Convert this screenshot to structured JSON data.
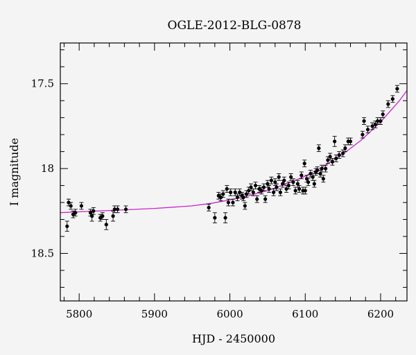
{
  "chart_data": {
    "type": "scatter",
    "title": "OGLE-2012-BLG-0878",
    "xlabel": "HJD - 2450000",
    "ylabel": "I magnitude",
    "xlim": [
      5775,
      6235
    ],
    "ylim": [
      18.78,
      17.26
    ],
    "y_inverted": true,
    "x_ticks": [
      5800,
      5900,
      6000,
      6100,
      6200
    ],
    "y_ticks": [
      17.5,
      18,
      18.5
    ],
    "y_tick_labels": [
      "17.5",
      "18",
      "18.5"
    ],
    "x_minor_step": 20,
    "y_minor_step": 0.1,
    "grid": false,
    "colors": {
      "points": "#000000",
      "fit": "#cc22cc",
      "background": "#f4f4f4"
    },
    "series": [
      {
        "kind": "observations",
        "points": [
          [
            5784,
            18.34,
            0.03
          ],
          [
            5786,
            18.2,
            0.02
          ],
          [
            5789,
            18.22,
            0.02
          ],
          [
            5792,
            18.27,
            0.02
          ],
          [
            5795,
            18.26,
            0.02
          ],
          [
            5803,
            18.22,
            0.02
          ],
          [
            5815,
            18.26,
            0.02
          ],
          [
            5817,
            18.28,
            0.03
          ],
          [
            5819,
            18.25,
            0.02
          ],
          [
            5828,
            18.29,
            0.02
          ],
          [
            5831,
            18.28,
            0.02
          ],
          [
            5836,
            18.33,
            0.03
          ],
          [
            5845,
            18.28,
            0.03
          ],
          [
            5847,
            18.24,
            0.02
          ],
          [
            5851,
            18.24,
            0.02
          ],
          [
            5862,
            18.24,
            0.02
          ],
          [
            5972,
            18.23,
            0.02
          ],
          [
            5980,
            18.29,
            0.03
          ],
          [
            5985,
            18.16,
            0.02
          ],
          [
            5988,
            18.17,
            0.02
          ],
          [
            5991,
            18.15,
            0.02
          ],
          [
            5994,
            18.29,
            0.03
          ],
          [
            5996,
            18.12,
            0.02
          ],
          [
            5998,
            18.2,
            0.02
          ],
          [
            6001,
            18.14,
            0.02
          ],
          [
            6004,
            18.2,
            0.02
          ],
          [
            6007,
            18.14,
            0.02
          ],
          [
            6010,
            18.17,
            0.02
          ],
          [
            6013,
            18.14,
            0.02
          ],
          [
            6016,
            18.16,
            0.02
          ],
          [
            6018,
            18.17,
            0.02
          ],
          [
            6020,
            18.22,
            0.02
          ],
          [
            6022,
            18.15,
            0.02
          ],
          [
            6025,
            18.13,
            0.02
          ],
          [
            6028,
            18.11,
            0.02
          ],
          [
            6031,
            18.14,
            0.02
          ],
          [
            6034,
            18.1,
            0.02
          ],
          [
            6036,
            18.18,
            0.02
          ],
          [
            6039,
            18.12,
            0.02
          ],
          [
            6042,
            18.13,
            0.02
          ],
          [
            6045,
            18.11,
            0.02
          ],
          [
            6047,
            18.18,
            0.02
          ],
          [
            6050,
            18.09,
            0.02
          ],
          [
            6052,
            18.12,
            0.02
          ],
          [
            6055,
            18.07,
            0.02
          ],
          [
            6058,
            18.14,
            0.02
          ],
          [
            6060,
            18.08,
            0.02
          ],
          [
            6062,
            18.11,
            0.02
          ],
          [
            6065,
            18.05,
            0.02
          ],
          [
            6067,
            18.14,
            0.02
          ],
          [
            6070,
            18.09,
            0.02
          ],
          [
            6072,
            18.07,
            0.02
          ],
          [
            6075,
            18.12,
            0.02
          ],
          [
            6078,
            18.1,
            0.02
          ],
          [
            6081,
            18.05,
            0.02
          ],
          [
            6084,
            18.08,
            0.02
          ],
          [
            6087,
            18.13,
            0.02
          ],
          [
            6090,
            18.09,
            0.02
          ],
          [
            6092,
            18.12,
            0.02
          ],
          [
            6095,
            18.04,
            0.02
          ],
          [
            6097,
            18.13,
            0.02
          ],
          [
            6099,
            17.97,
            0.02
          ],
          [
            6100,
            18.13,
            0.02
          ],
          [
            6102,
            18.06,
            0.02
          ],
          [
            6104,
            18.08,
            0.02
          ],
          [
            6107,
            18.03,
            0.02
          ],
          [
            6110,
            18.05,
            0.02
          ],
          [
            6112,
            18.09,
            0.02
          ],
          [
            6114,
            18.02,
            0.02
          ],
          [
            6116,
            18.01,
            0.02
          ],
          [
            6118,
            17.88,
            0.02
          ],
          [
            6120,
            18.03,
            0.02
          ],
          [
            6122,
            18.0,
            0.02
          ],
          [
            6124,
            18.06,
            0.02
          ],
          [
            6127,
            18.0,
            0.02
          ],
          [
            6130,
            17.95,
            0.02
          ],
          [
            6133,
            17.93,
            0.02
          ],
          [
            6136,
            17.96,
            0.02
          ],
          [
            6139,
            17.84,
            0.03
          ],
          [
            6141,
            17.94,
            0.02
          ],
          [
            6145,
            17.92,
            0.02
          ],
          [
            6150,
            17.91,
            0.02
          ],
          [
            6153,
            17.88,
            0.02
          ],
          [
            6157,
            17.84,
            0.02
          ],
          [
            6160,
            17.84,
            0.02
          ],
          [
            6176,
            17.8,
            0.02
          ],
          [
            6178,
            17.72,
            0.02
          ],
          [
            6183,
            17.77,
            0.02
          ],
          [
            6189,
            17.75,
            0.02
          ],
          [
            6193,
            17.74,
            0.02
          ],
          [
            6196,
            17.72,
            0.02
          ],
          [
            6200,
            17.72,
            0.02
          ],
          [
            6203,
            17.68,
            0.02
          ],
          [
            6210,
            17.62,
            0.02
          ],
          [
            6216,
            17.59,
            0.02
          ],
          [
            6222,
            17.53,
            0.02
          ]
        ]
      },
      {
        "kind": "model-curve",
        "points": [
          [
            5775,
            18.26
          ],
          [
            5800,
            18.255
          ],
          [
            5850,
            18.245
          ],
          [
            5900,
            18.235
          ],
          [
            5950,
            18.22
          ],
          [
            5975,
            18.205
          ],
          [
            6000,
            18.185
          ],
          [
            6025,
            18.16
          ],
          [
            6050,
            18.13
          ],
          [
            6075,
            18.09
          ],
          [
            6100,
            18.045
          ],
          [
            6125,
            17.985
          ],
          [
            6150,
            17.915
          ],
          [
            6175,
            17.83
          ],
          [
            6200,
            17.725
          ],
          [
            6215,
            17.65
          ],
          [
            6225,
            17.6
          ],
          [
            6235,
            17.54
          ]
        ]
      }
    ]
  }
}
